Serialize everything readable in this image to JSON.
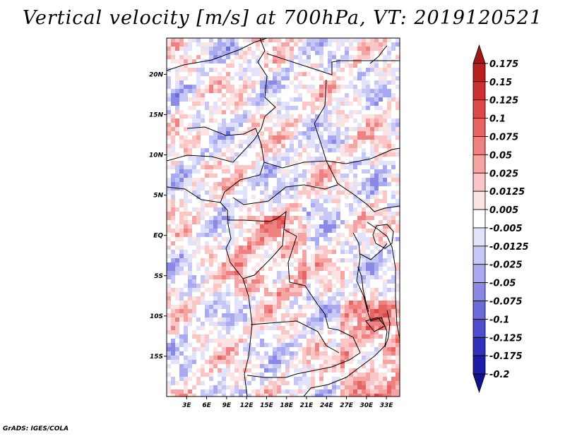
{
  "title": "Vertical velocity [m/s] at 700hPa, VT: 2019120521",
  "footer": "GrADS: IGES/COLA",
  "map": {
    "lat_labels": [
      "20N",
      "15N",
      "10N",
      "5N",
      "EQ",
      "5S",
      "10S",
      "15S"
    ],
    "lon_labels": [
      "3E",
      "6E",
      "9E",
      "12E",
      "15E",
      "18E",
      "21E",
      "24E",
      "27E",
      "30E",
      "33E"
    ],
    "lat_range": [
      -20,
      24.5
    ],
    "lon_range": [
      0,
      35
    ]
  },
  "colorbar": {
    "labels": [
      "0.175",
      "0.15",
      "0.125",
      "0.1",
      "0.075",
      "0.05",
      "0.025",
      "0.0125",
      "0.005",
      "-0.005",
      "-0.0125",
      "-0.025",
      "-0.05",
      "-0.075",
      "-0.1",
      "-0.125",
      "-0.175",
      "-0.2"
    ],
    "colors": [
      "#a01818",
      "#b82020",
      "#cc3030",
      "#dd4848",
      "#e66464",
      "#ee8282",
      "#f5a4a4",
      "#fac6c6",
      "#fde4e4",
      "#ffffff",
      "#e2e2fb",
      "#c7c7f6",
      "#a9a9ef",
      "#8a8ae6",
      "#6b6bdb",
      "#4d4dce",
      "#3030bb",
      "#1c1ca8",
      "#10108a"
    ]
  }
}
